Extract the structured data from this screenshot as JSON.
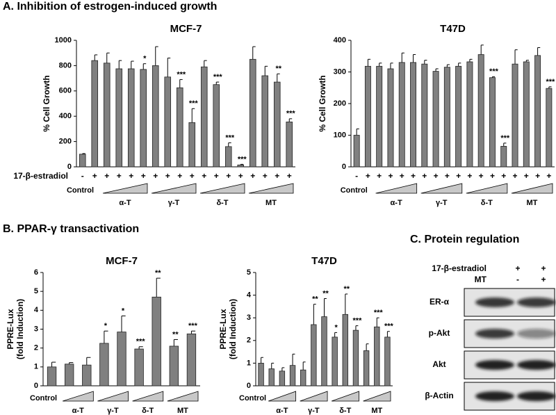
{
  "panel_titles": {
    "a": "A. Inhibition of estrogen-induced growth",
    "b": "B. PPAR-γ transactivation",
    "c": "C. Protein regulation"
  },
  "chart_data": [
    {
      "type": "bar",
      "title": "MCF-7",
      "ylabel": [
        "% Cell Growth"
      ],
      "row_label": "17-β-estradiol",
      "categories": [
        "-",
        "+",
        "+",
        "+",
        "+",
        "+",
        "+",
        "+",
        "+",
        "+",
        "+",
        "+",
        "+",
        "+",
        "+",
        "+",
        "+",
        "+"
      ],
      "values": [
        100,
        840,
        820,
        775,
        775,
        770,
        800,
        710,
        625,
        350,
        790,
        650,
        160,
        15,
        850,
        720,
        670,
        355
      ],
      "errors": [
        5,
        45,
        80,
        65,
        60,
        45,
        150,
        150,
        65,
        110,
        50,
        20,
        30,
        5,
        100,
        75,
        65,
        25
      ],
      "annotations": [
        null,
        null,
        null,
        null,
        null,
        "*",
        null,
        null,
        "***",
        "***",
        null,
        "***",
        "***",
        "***",
        null,
        null,
        "**",
        "***"
      ],
      "groups": [
        {
          "label": "Control",
          "count": 2
        },
        {
          "label": "α-T",
          "count": 4
        },
        {
          "label": "γ-T",
          "count": 4
        },
        {
          "label": "δ-T",
          "count": 4
        },
        {
          "label": "MT",
          "count": 4
        }
      ],
      "ylim": [
        0,
        1000
      ],
      "yticks": [
        0,
        200,
        400,
        600,
        800,
        1000
      ],
      "color": "#808080"
    },
    {
      "type": "bar",
      "title": "T47D",
      "ylabel": [
        "% Cell Growth"
      ],
      "categories": [
        "-",
        "+",
        "+",
        "+",
        "+",
        "+",
        "+",
        "+",
        "+",
        "+",
        "+",
        "+",
        "+",
        "+",
        "+",
        "+",
        "+",
        "+"
      ],
      "values": [
        100,
        318,
        318,
        310,
        330,
        330,
        325,
        302,
        315,
        318,
        332,
        355,
        282,
        65,
        325,
        332,
        352,
        248
      ],
      "errors": [
        20,
        22,
        10,
        18,
        30,
        25,
        12,
        8,
        8,
        10,
        8,
        30,
        3,
        10,
        45,
        5,
        25,
        5
      ],
      "annotations": [
        null,
        null,
        null,
        null,
        null,
        null,
        null,
        null,
        null,
        null,
        null,
        null,
        "***",
        "***",
        null,
        null,
        null,
        "***"
      ],
      "groups": [
        {
          "label": "Control",
          "count": 2
        },
        {
          "label": "α-T",
          "count": 4
        },
        {
          "label": "γ-T",
          "count": 4
        },
        {
          "label": "δ-T",
          "count": 4
        },
        {
          "label": "MT",
          "count": 4
        }
      ],
      "ylim": [
        0,
        400
      ],
      "yticks": [
        0,
        100,
        200,
        300,
        400
      ],
      "color": "#808080"
    },
    {
      "type": "bar",
      "title": "MCF-7",
      "ylabel": [
        "PPRE-Lux",
        "(fold Induction)"
      ],
      "categories": [
        null,
        null,
        null,
        null,
        null,
        null,
        null,
        null,
        null
      ],
      "values": [
        1.0,
        1.15,
        1.1,
        2.25,
        2.85,
        1.95,
        4.7,
        2.1,
        2.75
      ],
      "errors": [
        0.25,
        0.08,
        0.4,
        0.65,
        0.85,
        0.12,
        1.0,
        0.35,
        0.15
      ],
      "annotations": [
        null,
        null,
        null,
        "*",
        "*",
        "***",
        "**",
        "**",
        "***"
      ],
      "groups": [
        {
          "label": "Control",
          "count": 1
        },
        {
          "label": "α-T",
          "count": 2
        },
        {
          "label": "γ-T",
          "count": 2
        },
        {
          "label": "δ-T",
          "count": 2
        },
        {
          "label": "MT",
          "count": 2
        }
      ],
      "ylim": [
        0,
        6
      ],
      "yticks": [
        0,
        1,
        2,
        3,
        4,
        5,
        6
      ],
      "color": "#808080"
    },
    {
      "type": "bar",
      "title": "T47D",
      "ylabel": [
        "PPRE-Lux",
        "(fold Induction)"
      ],
      "categories": [
        null,
        null,
        null,
        null,
        null,
        null,
        null,
        null,
        null,
        null,
        null,
        null,
        null
      ],
      "values": [
        1.0,
        0.75,
        0.65,
        0.9,
        0.7,
        2.7,
        3.05,
        2.15,
        3.15,
        2.45,
        1.55,
        2.6,
        2.15
      ],
      "errors": [
        0.25,
        0.25,
        0.15,
        0.5,
        0.35,
        0.9,
        0.8,
        0.2,
        0.9,
        0.2,
        0.3,
        0.4,
        0.25
      ],
      "annotations": [
        null,
        null,
        null,
        null,
        null,
        "**",
        "**",
        "*",
        "**",
        "***",
        null,
        "***",
        "***"
      ],
      "groups": [
        {
          "label": "Control",
          "count": 1
        },
        {
          "label": "α-T",
          "count": 3
        },
        {
          "label": "γ-T",
          "count": 3
        },
        {
          "label": "δ-T",
          "count": 3
        },
        {
          "label": "MT",
          "count": 3
        }
      ],
      "ylim": [
        0,
        5
      ],
      "yticks": [
        0,
        1,
        2,
        3,
        4,
        5
      ],
      "color": "#808080"
    }
  ],
  "blot": {
    "conditions": [
      {
        "label": "17-β-estradiol",
        "lanes": [
          "+",
          "+"
        ]
      },
      {
        "label": "MT",
        "lanes": [
          "-",
          "+"
        ]
      }
    ],
    "proteins": [
      "ER-α",
      "p-Akt",
      "Akt",
      "β-Actin"
    ]
  }
}
